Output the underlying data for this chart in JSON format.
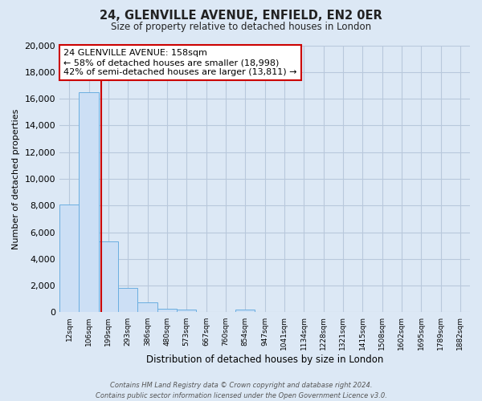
{
  "title": "24, GLENVILLE AVENUE, ENFIELD, EN2 0ER",
  "subtitle": "Size of property relative to detached houses in London",
  "xlabel": "Distribution of detached houses by size in London",
  "ylabel": "Number of detached properties",
  "categories": [
    "12sqm",
    "106sqm",
    "199sqm",
    "293sqm",
    "386sqm",
    "480sqm",
    "573sqm",
    "667sqm",
    "760sqm",
    "854sqm",
    "947sqm",
    "1041sqm",
    "1134sqm",
    "1228sqm",
    "1321sqm",
    "1415sqm",
    "1508sqm",
    "1602sqm",
    "1695sqm",
    "1789sqm",
    "1882sqm"
  ],
  "values": [
    8100,
    16500,
    5300,
    1850,
    750,
    280,
    200,
    0,
    0,
    200,
    0,
    0,
    0,
    0,
    0,
    0,
    0,
    0,
    0,
    0,
    0
  ],
  "bar_color": "#ccdff5",
  "bar_edge_color": "#6aaee0",
  "vline_x": 1.62,
  "vline_color": "#cc0000",
  "ylim": [
    0,
    20000
  ],
  "yticks": [
    0,
    2000,
    4000,
    6000,
    8000,
    10000,
    12000,
    14000,
    16000,
    18000,
    20000
  ],
  "annotation_title": "24 GLENVILLE AVENUE: 158sqm",
  "annotation_line1": "← 58% of detached houses are smaller (18,998)",
  "annotation_line2": "42% of semi-detached houses are larger (13,811) →",
  "annotation_box_facecolor": "#ffffff",
  "annotation_box_edgecolor": "#cc0000",
  "grid_color": "#b8c8dc",
  "plot_bg_color": "#dce8f5",
  "fig_bg_color": "#dce8f5",
  "footnote1": "Contains HM Land Registry data © Crown copyright and database right 2024.",
  "footnote2": "Contains public sector information licensed under the Open Government Licence v3.0."
}
